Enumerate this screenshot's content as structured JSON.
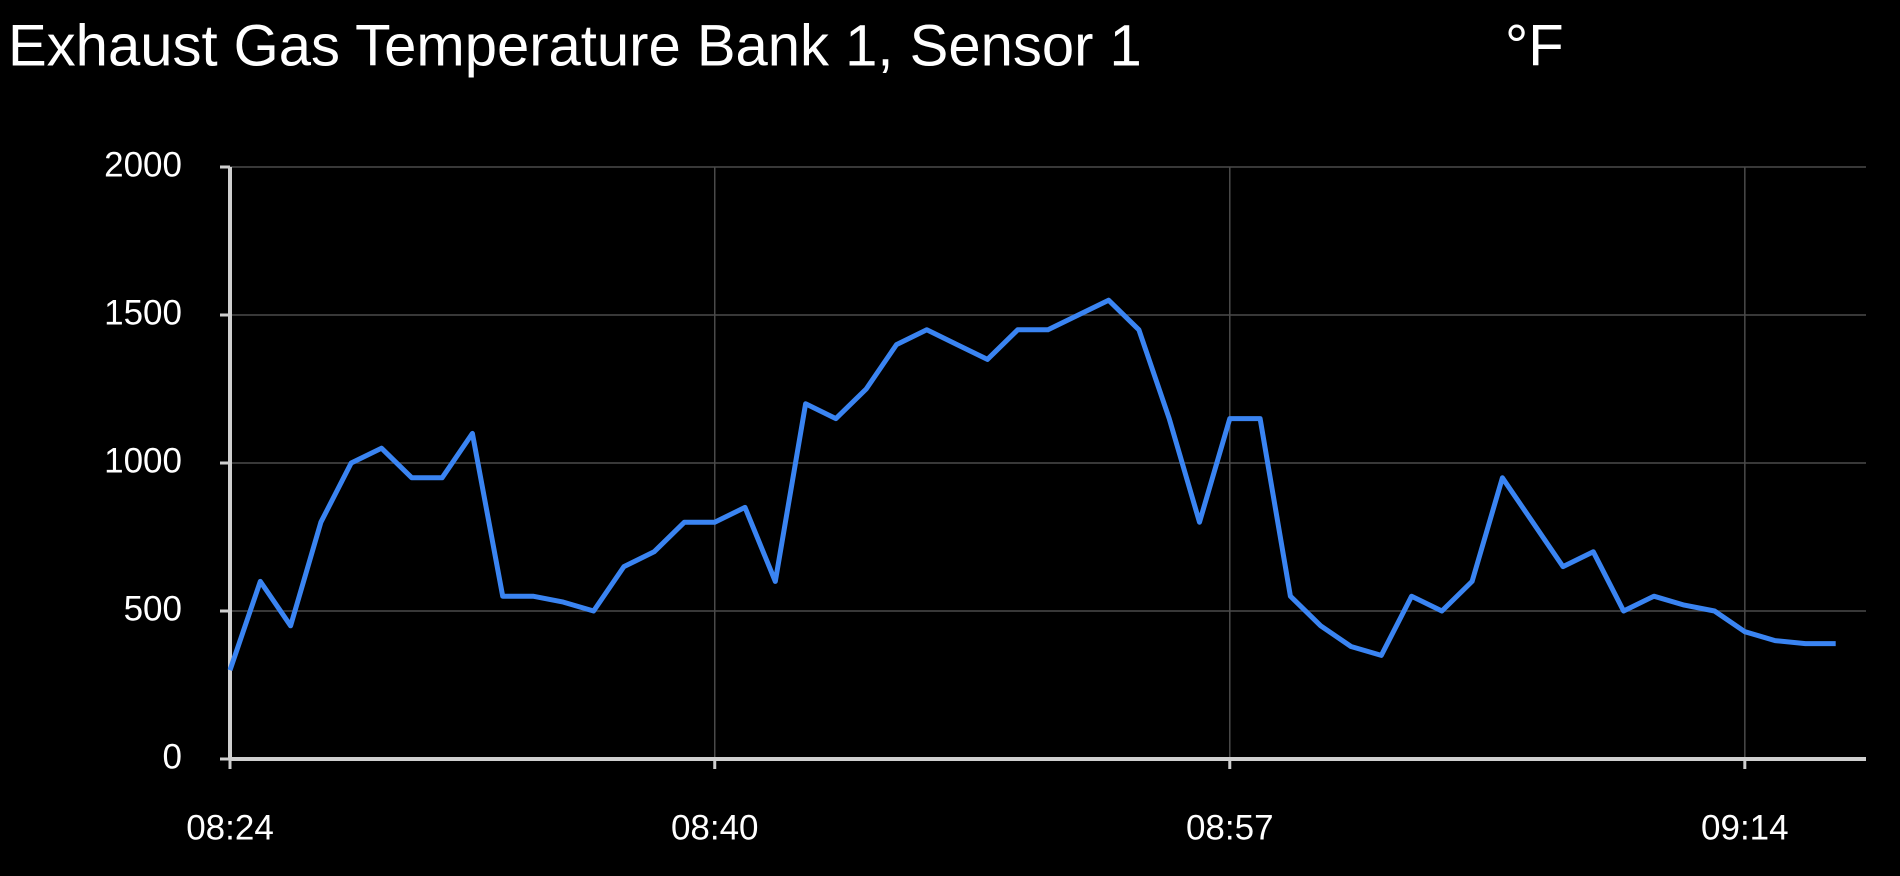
{
  "chart_data": {
    "type": "line",
    "title": "Exhaust Gas Temperature Bank 1, Sensor 1",
    "unit": "°F",
    "x": [
      "08:24",
      "08:25",
      "08:26",
      "08:27",
      "08:28",
      "08:29",
      "08:30",
      "08:31",
      "08:32",
      "08:33",
      "08:34",
      "08:35",
      "08:36",
      "08:37",
      "08:38",
      "08:39",
      "08:40",
      "08:41",
      "08:42",
      "08:43",
      "08:44",
      "08:45",
      "08:46",
      "08:47",
      "08:48",
      "08:49",
      "08:50",
      "08:51",
      "08:52",
      "08:53",
      "08:54",
      "08:55",
      "08:56",
      "08:57",
      "08:58",
      "08:59",
      "09:00",
      "09:01",
      "09:02",
      "09:03",
      "09:04",
      "09:05",
      "09:06",
      "09:07",
      "09:08",
      "09:09",
      "09:10",
      "09:11",
      "09:12",
      "09:13",
      "09:14",
      "09:15",
      "09:16",
      "09:17"
    ],
    "series": [
      {
        "name": "Exhaust Gas Temperature Bank 1, Sensor 1",
        "color": "#3a84f2",
        "values": [
          300,
          600,
          450,
          800,
          1000,
          1050,
          950,
          950,
          1100,
          550,
          550,
          530,
          500,
          650,
          700,
          800,
          800,
          850,
          600,
          1200,
          1150,
          1250,
          1400,
          1450,
          1400,
          1350,
          1450,
          1450,
          1500,
          1550,
          1450,
          1150,
          800,
          1150,
          1150,
          550,
          450,
          380,
          350,
          550,
          500,
          600,
          950,
          800,
          650,
          700,
          500,
          550,
          520,
          500,
          430,
          400,
          390,
          390
        ]
      }
    ],
    "xlim": [
      "08:24",
      "09:18"
    ],
    "xticks": [
      "08:24",
      "08:40",
      "08:57",
      "09:14"
    ],
    "ylim": [
      0,
      2000
    ],
    "yticks": [
      0,
      500,
      1000,
      1500,
      2000
    ],
    "grid": true
  }
}
